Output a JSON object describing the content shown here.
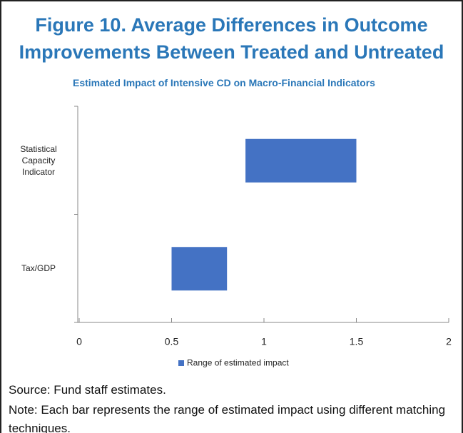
{
  "chart_data": {
    "type": "rangebar",
    "title": "Figure 10. Average Differences in Outcome Improvements Between Treated and Untreated",
    "subtitle": "Estimated Impact of Intensive CD on Macro-Financial Indicators",
    "categories": [
      "Statistical Capacity Indicator",
      "Tax/GDP"
    ],
    "series": [
      {
        "name": "Range of estimated impact",
        "color": "#4472c4",
        "low": [
          0.9,
          0.5
        ],
        "high": [
          1.5,
          0.8
        ]
      }
    ],
    "xlim": [
      0,
      2
    ],
    "xticks": [
      0,
      0.5,
      1,
      1.5,
      2
    ],
    "legend": "bottom",
    "source": "Source: Fund staff estimates.",
    "note": "Note: Each bar represents the range of estimated impact using different matching techniques."
  }
}
